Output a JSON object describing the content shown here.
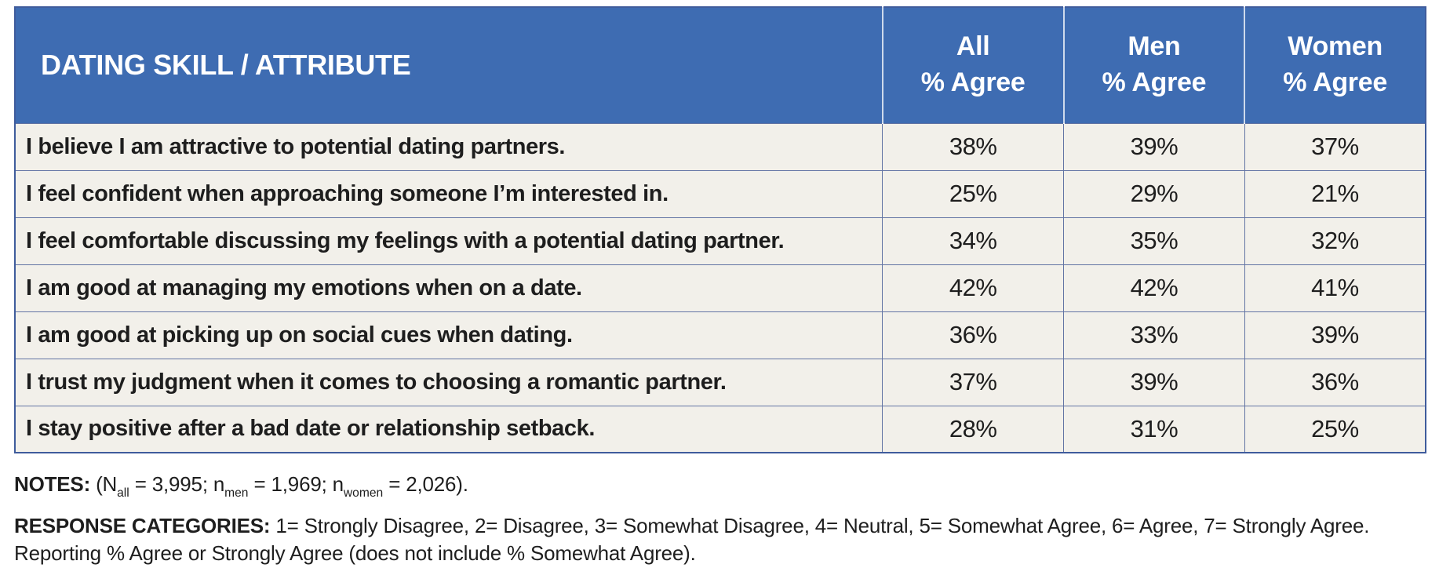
{
  "colors": {
    "header_blue": "#3E6CB2",
    "row_background": "#F2F0EA",
    "grid_line": "#6274A4",
    "outer_border": "#3F5C9C",
    "header_text": "#FFFFFF",
    "body_text": "#1E1E1E"
  },
  "table": {
    "skill_header": "DATING SKILL / ATTRIBUTE",
    "value_headers": [
      {
        "group": "All",
        "measure": "% Agree"
      },
      {
        "group": "Men",
        "measure": "% Agree"
      },
      {
        "group": "Women",
        "measure": "% Agree"
      }
    ],
    "rows": [
      {
        "statement": "I believe I am attractive to potential dating partners.",
        "all": "38%",
        "men": "39%",
        "women": "37%"
      },
      {
        "statement": "I feel confident when approaching someone I’m interested in.",
        "all": "25%",
        "men": "29%",
        "women": "21%"
      },
      {
        "statement": "I feel comfortable discussing my feelings with a potential dating partner.",
        "all": "34%",
        "men": "35%",
        "women": "32%"
      },
      {
        "statement": "I am good at managing my emotions when on a date.",
        "all": "42%",
        "men": "42%",
        "women": "41%"
      },
      {
        "statement": "I am good at picking up on social cues when dating.",
        "all": "36%",
        "men": "33%",
        "women": "39%"
      },
      {
        "statement": "I trust my judgment when it comes to choosing a romantic partner.",
        "all": "37%",
        "men": "39%",
        "women": "36%"
      },
      {
        "statement": "I stay positive after a bad date or relationship setback.",
        "all": "28%",
        "men": "31%",
        "women": "25%"
      }
    ]
  },
  "notes": {
    "label": "NOTES:",
    "p1": "(N",
    "sub1": "all",
    "p2": "= 3,995; n",
    "sub2": "men",
    "p3": "= 1,969; n",
    "sub3": "women",
    "p4": "= 2,026)."
  },
  "response_categories": {
    "label": "RESPONSE CATEGORIES:",
    "line1": "1= Strongly Disagree, 2= Disagree, 3= Somewhat Disagree, 4= Neutral, 5= Somewhat Agree, 6= Agree, 7= Strongly Agree.",
    "line2": "Reporting % Agree or Strongly Agree (does not include % Somewhat Agree)."
  },
  "chart_data": {
    "type": "table",
    "title": "DATING SKILL / ATTRIBUTE",
    "columns": [
      "DATING SKILL / ATTRIBUTE",
      "All % Agree",
      "Men % Agree",
      "Women % Agree"
    ],
    "categories": [
      "I believe I am attractive to potential dating partners.",
      "I feel confident when approaching someone I’m interested in.",
      "I feel comfortable discussing my feelings with a potential dating partner.",
      "I am good at managing my emotions when on a date.",
      "I am good at picking up on social cues when dating.",
      "I trust my judgment when it comes to choosing a romantic partner.",
      "I stay positive after a bad date or relationship setback."
    ],
    "series": [
      {
        "name": "All % Agree",
        "values": [
          38,
          25,
          34,
          42,
          36,
          37,
          28
        ]
      },
      {
        "name": "Men % Agree",
        "values": [
          39,
          29,
          35,
          42,
          33,
          39,
          31
        ]
      },
      {
        "name": "Women % Agree",
        "values": [
          37,
          21,
          32,
          41,
          39,
          36,
          25
        ]
      }
    ],
    "units": "percent",
    "sample_sizes": {
      "all": 3995,
      "men": 1969,
      "women": 2026
    },
    "notes": "Response categories: 1= Strongly Disagree, 2= Disagree, 3= Somewhat Disagree, 4= Neutral, 5= Somewhat Agree, 6= Agree, 7= Strongly Agree. Reporting % Agree or Strongly Agree (does not include % Somewhat Agree)."
  }
}
